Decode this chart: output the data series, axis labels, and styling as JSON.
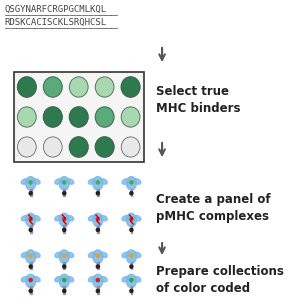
{
  "title": "",
  "background_color": "#ffffff",
  "text_line1": "QSGYNARFCRGPGCMLKQL",
  "text_line2": "RDSKCACISCKLSRQHCSL",
  "text_line1_underline": true,
  "text_line2_underline": true,
  "step1_label": "Select true\nMHC binders",
  "step2_label": "Create a panel of\npMHC complexes",
  "step3_label": "Prepare collections\nof color coded",
  "arrow_color": "#555555",
  "box_color": "#333333",
  "circle_colors": [
    [
      "#2d7a4f",
      "#5aaa7a",
      "#a8d8b0",
      "#a8d8b0",
      "#2d7a4f"
    ],
    [
      "#a8d8b0",
      "#2d7a4f",
      "#2d7a4f",
      "#5aaa7a",
      "#a8d8b0"
    ],
    [
      "#e8e8e8",
      "#e8e8e8",
      "#2d7a4f",
      "#2d7a4f",
      "#e8e8e8"
    ]
  ],
  "grid_rows": 3,
  "grid_cols": 5,
  "figsize": [
    3.04,
    3.04
  ],
  "dpi": 100
}
